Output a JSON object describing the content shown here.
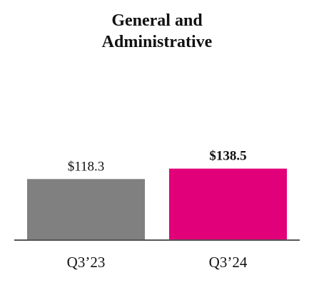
{
  "chart_data": {
    "type": "bar",
    "title_lines": [
      "General and",
      "Administrative"
    ],
    "categories": [
      "Q3’23",
      "Q3’24"
    ],
    "values": [
      118.3,
      138.5
    ],
    "value_labels": [
      "$118.3",
      "$138.5"
    ],
    "bar_colors": [
      "#808080",
      "#e2007a"
    ],
    "highlighted_index": 1,
    "xlabel": "",
    "ylabel": "",
    "ylim": [
      0,
      150
    ],
    "grid": false,
    "legend": "none"
  },
  "colors": {
    "axis": "#555555",
    "text": "#111111"
  }
}
